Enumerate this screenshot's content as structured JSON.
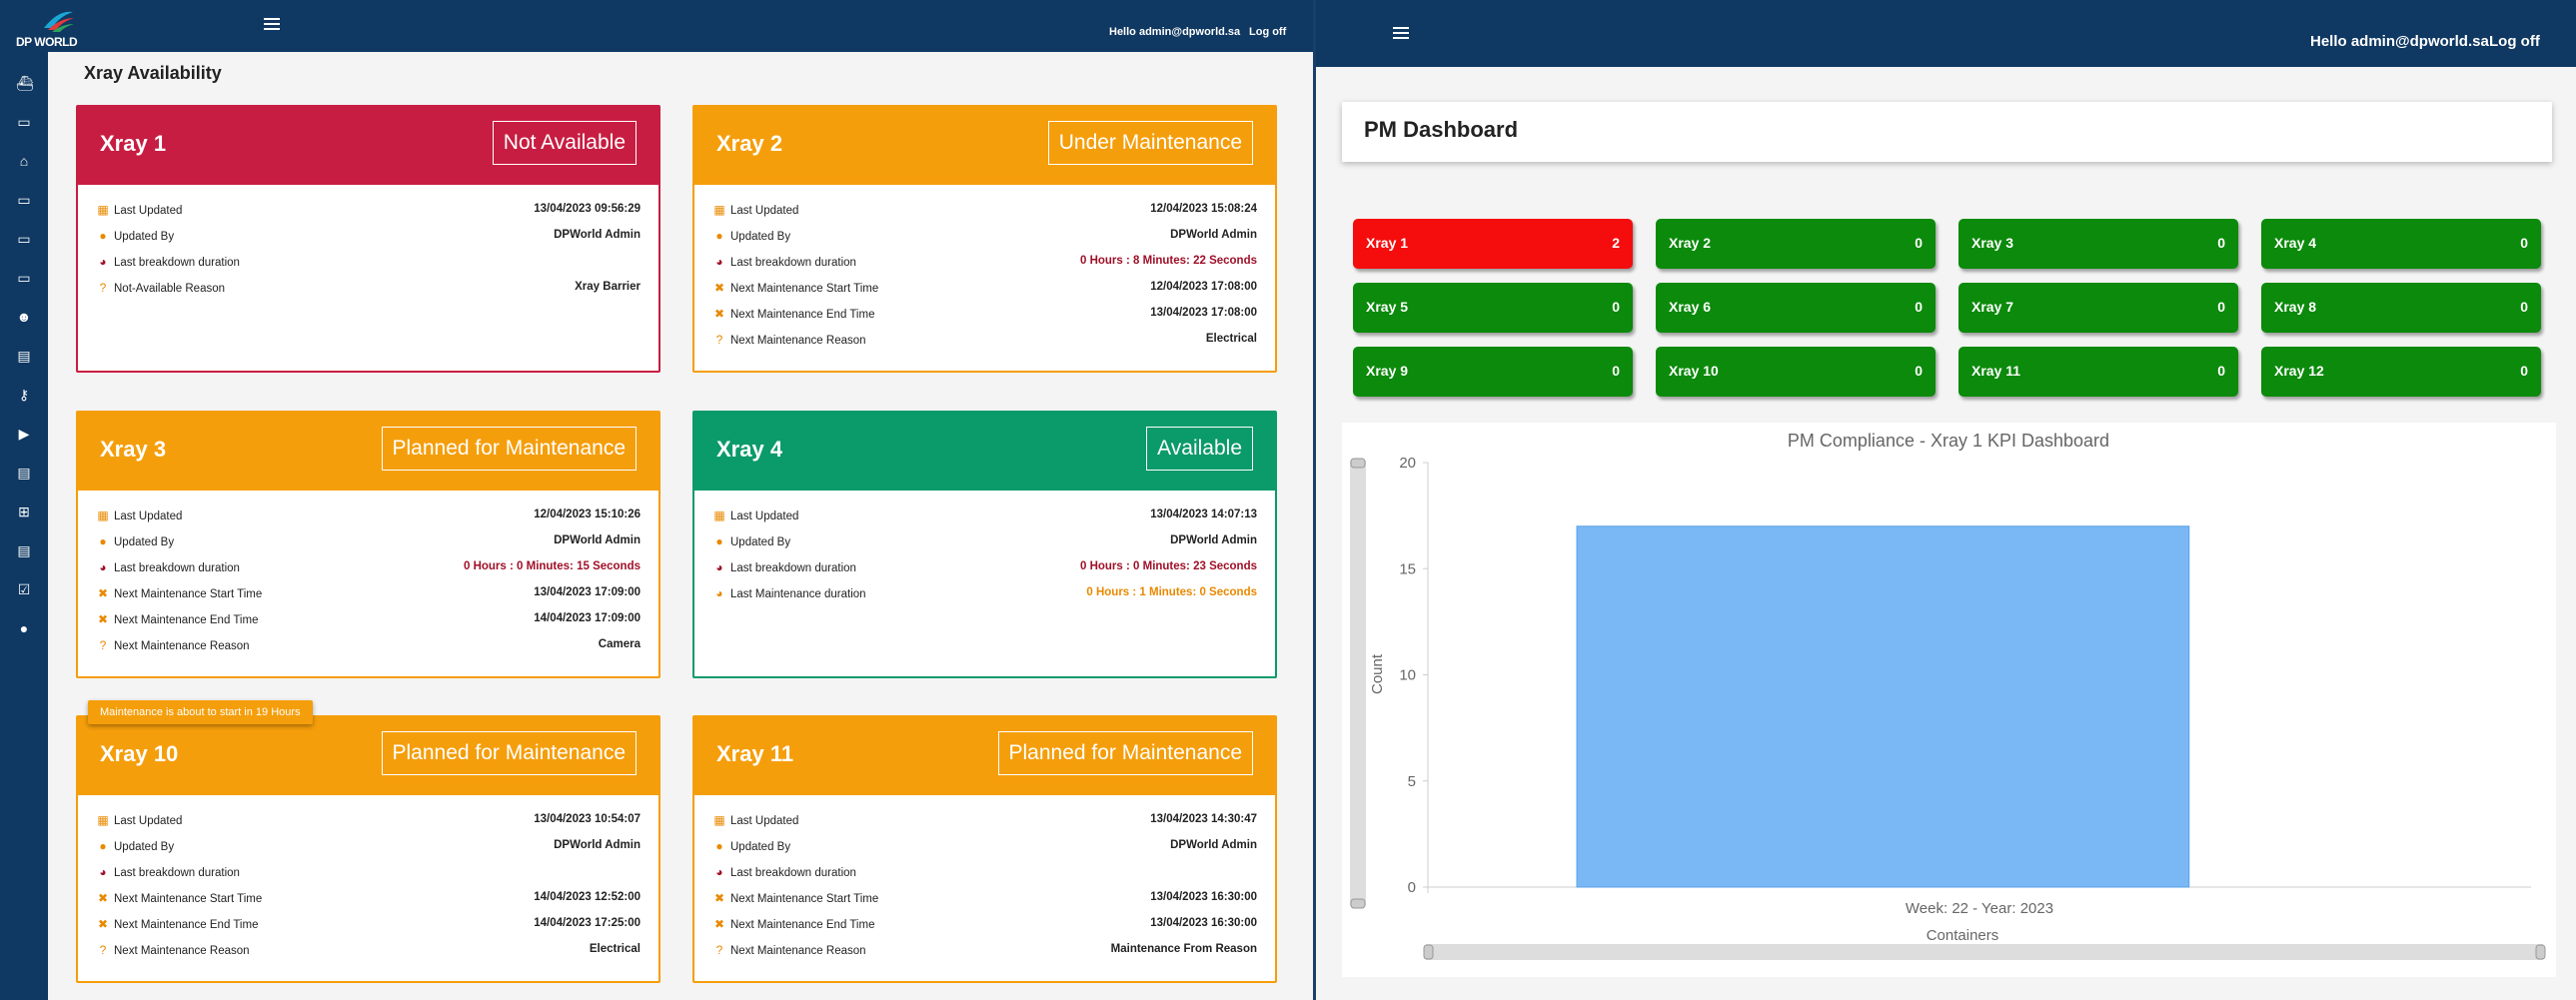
{
  "left": {
    "logo_text": "DP WORLD",
    "header": {
      "greeting": "Hello admin@dpworld.sa",
      "logoff": "Log off"
    },
    "sidebar_icons": [
      "ship-icon",
      "ticket-icon",
      "home-icon",
      "ticket-icon",
      "ticket-icon",
      "ticket-icon",
      "user-gear-icon",
      "warehouse-icon",
      "key-icon",
      "truck-icon",
      "warehouse-icon",
      "sitemap-icon",
      "warehouse-icon",
      "ticket-check-icon",
      "user-icon"
    ],
    "page_title": "Xray Availability",
    "tooltip": "Maintenance is about to start in 19 Hours",
    "cards": [
      {
        "name": "Xray 1",
        "status": "Not Available",
        "color": "#c81d42",
        "rows": [
          {
            "icon": "calendar-icon",
            "label": "Last Updated",
            "value": "13/04/2023 09:56:29",
            "tone": "normal"
          },
          {
            "icon": "user-icon",
            "label": "Updated By",
            "value": "DPWorld Admin",
            "tone": "normal"
          },
          {
            "icon": "pie-icon",
            "label": "Last breakdown duration",
            "value": "",
            "tone": "danger"
          },
          {
            "icon": "question-icon",
            "label": "Not-Available Reason",
            "value": "Xray Barrier",
            "tone": "normal"
          }
        ]
      },
      {
        "name": "Xray 2",
        "status": "Under Maintenance",
        "color": "#f59e0b",
        "rows": [
          {
            "icon": "calendar-icon",
            "label": "Last Updated",
            "value": "12/04/2023 15:08:24",
            "tone": "normal"
          },
          {
            "icon": "user-icon",
            "label": "Updated By",
            "value": "DPWorld Admin",
            "tone": "normal"
          },
          {
            "icon": "pie-icon",
            "label": "Last breakdown duration",
            "value": "0 Hours : 8 Minutes: 22 Seconds",
            "tone": "danger"
          },
          {
            "icon": "tools-icon",
            "label": "Next Maintenance Start Time",
            "value": "12/04/2023 17:08:00",
            "tone": "normal"
          },
          {
            "icon": "tools-icon",
            "label": "Next Maintenance End Time",
            "value": "13/04/2023 17:08:00",
            "tone": "normal"
          },
          {
            "icon": "question-icon",
            "label": "Next Maintenance Reason",
            "value": "Electrical",
            "tone": "normal"
          }
        ]
      },
      {
        "name": "Xray 3",
        "status": "Planned for Maintenance",
        "color": "#f59e0b",
        "rows": [
          {
            "icon": "calendar-icon",
            "label": "Last Updated",
            "value": "12/04/2023 15:10:26",
            "tone": "normal"
          },
          {
            "icon": "user-icon",
            "label": "Updated By",
            "value": "DPWorld Admin",
            "tone": "normal"
          },
          {
            "icon": "pie-icon",
            "label": "Last breakdown duration",
            "value": "0 Hours : 0 Minutes: 15 Seconds",
            "tone": "danger"
          },
          {
            "icon": "tools-icon",
            "label": "Next Maintenance Start Time",
            "value": "13/04/2023 17:09:00",
            "tone": "normal"
          },
          {
            "icon": "tools-icon",
            "label": "Next Maintenance End Time",
            "value": "14/04/2023 17:09:00",
            "tone": "normal"
          },
          {
            "icon": "question-icon",
            "label": "Next Maintenance Reason",
            "value": "Camera",
            "tone": "normal"
          }
        ]
      },
      {
        "name": "Xray 4",
        "status": "Available",
        "color": "#0b9a6a",
        "rows": [
          {
            "icon": "calendar-icon",
            "label": "Last Updated",
            "value": "13/04/2023 14:07:13",
            "tone": "normal"
          },
          {
            "icon": "user-icon",
            "label": "Updated By",
            "value": "DPWorld Admin",
            "tone": "normal"
          },
          {
            "icon": "pie-icon",
            "label": "Last breakdown duration",
            "value": "0 Hours : 0 Minutes: 23 Seconds",
            "tone": "danger"
          },
          {
            "icon": "pie-icon",
            "label": "Last Maintenance duration",
            "value": "0 Hours : 1 Minutes: 0 Seconds",
            "tone": "warn"
          }
        ]
      },
      {
        "name": "Xray 10",
        "status": "Planned for Maintenance",
        "color": "#f59e0b",
        "rows": [
          {
            "icon": "calendar-icon",
            "label": "Last Updated",
            "value": "13/04/2023 10:54:07",
            "tone": "normal"
          },
          {
            "icon": "user-icon",
            "label": "Updated By",
            "value": "DPWorld Admin",
            "tone": "normal"
          },
          {
            "icon": "pie-icon",
            "label": "Last breakdown duration",
            "value": "",
            "tone": "danger"
          },
          {
            "icon": "tools-icon",
            "label": "Next Maintenance Start Time",
            "value": "14/04/2023 12:52:00",
            "tone": "normal"
          },
          {
            "icon": "tools-icon",
            "label": "Next Maintenance End Time",
            "value": "14/04/2023 17:25:00",
            "tone": "normal"
          },
          {
            "icon": "question-icon",
            "label": "Next Maintenance Reason",
            "value": "Electrical",
            "tone": "normal"
          }
        ]
      },
      {
        "name": "Xray 11",
        "status": "Planned for Maintenance",
        "color": "#f59e0b",
        "rows": [
          {
            "icon": "calendar-icon",
            "label": "Last Updated",
            "value": "13/04/2023 14:30:47",
            "tone": "normal"
          },
          {
            "icon": "user-icon",
            "label": "Updated By",
            "value": "DPWorld Admin",
            "tone": "normal"
          },
          {
            "icon": "pie-icon",
            "label": "Last breakdown duration",
            "value": "",
            "tone": "danger"
          },
          {
            "icon": "tools-icon",
            "label": "Next Maintenance Start Time",
            "value": "13/04/2023 16:30:00",
            "tone": "normal"
          },
          {
            "icon": "tools-icon",
            "label": "Next Maintenance End Time",
            "value": "13/04/2023 16:30:00",
            "tone": "normal"
          },
          {
            "icon": "question-icon",
            "label": "Next Maintenance Reason",
            "value": "Maintenance From Reason",
            "tone": "normal"
          }
        ]
      }
    ]
  },
  "right": {
    "header": {
      "greeting": "Hello admin@dpworld.sa",
      "logoff": "Log off"
    },
    "pm_title": "PM Dashboard",
    "tiles": [
      {
        "name": "Xray 1",
        "count": "2",
        "color": "#f50d0d"
      },
      {
        "name": "Xray 2",
        "count": "0",
        "color": "#0b8a0b"
      },
      {
        "name": "Xray 3",
        "count": "0",
        "color": "#0b8a0b"
      },
      {
        "name": "Xray 4",
        "count": "0",
        "color": "#0b8a0b"
      },
      {
        "name": "Xray 5",
        "count": "0",
        "color": "#0b8a0b"
      },
      {
        "name": "Xray 6",
        "count": "0",
        "color": "#0b8a0b"
      },
      {
        "name": "Xray 7",
        "count": "0",
        "color": "#0b8a0b"
      },
      {
        "name": "Xray 8",
        "count": "0",
        "color": "#0b8a0b"
      },
      {
        "name": "Xray 9",
        "count": "0",
        "color": "#0b8a0b"
      },
      {
        "name": "Xray 10",
        "count": "0",
        "color": "#0b8a0b"
      },
      {
        "name": "Xray 11",
        "count": "0",
        "color": "#0b8a0b"
      },
      {
        "name": "Xray 12",
        "count": "0",
        "color": "#0b8a0b"
      }
    ]
  },
  "chart_data": {
    "type": "bar",
    "title": "PM Compliance - Xray 1 KPI Dashboard",
    "categories": [
      "Week: 22 - Year: 2023"
    ],
    "values": [
      17
    ],
    "xlabel": "Containers",
    "ylabel": "Count",
    "ylim": [
      0,
      20
    ],
    "yticks": [
      0,
      5,
      10,
      15,
      20
    ],
    "grid": false,
    "bar_color": "#7ab8f5"
  }
}
